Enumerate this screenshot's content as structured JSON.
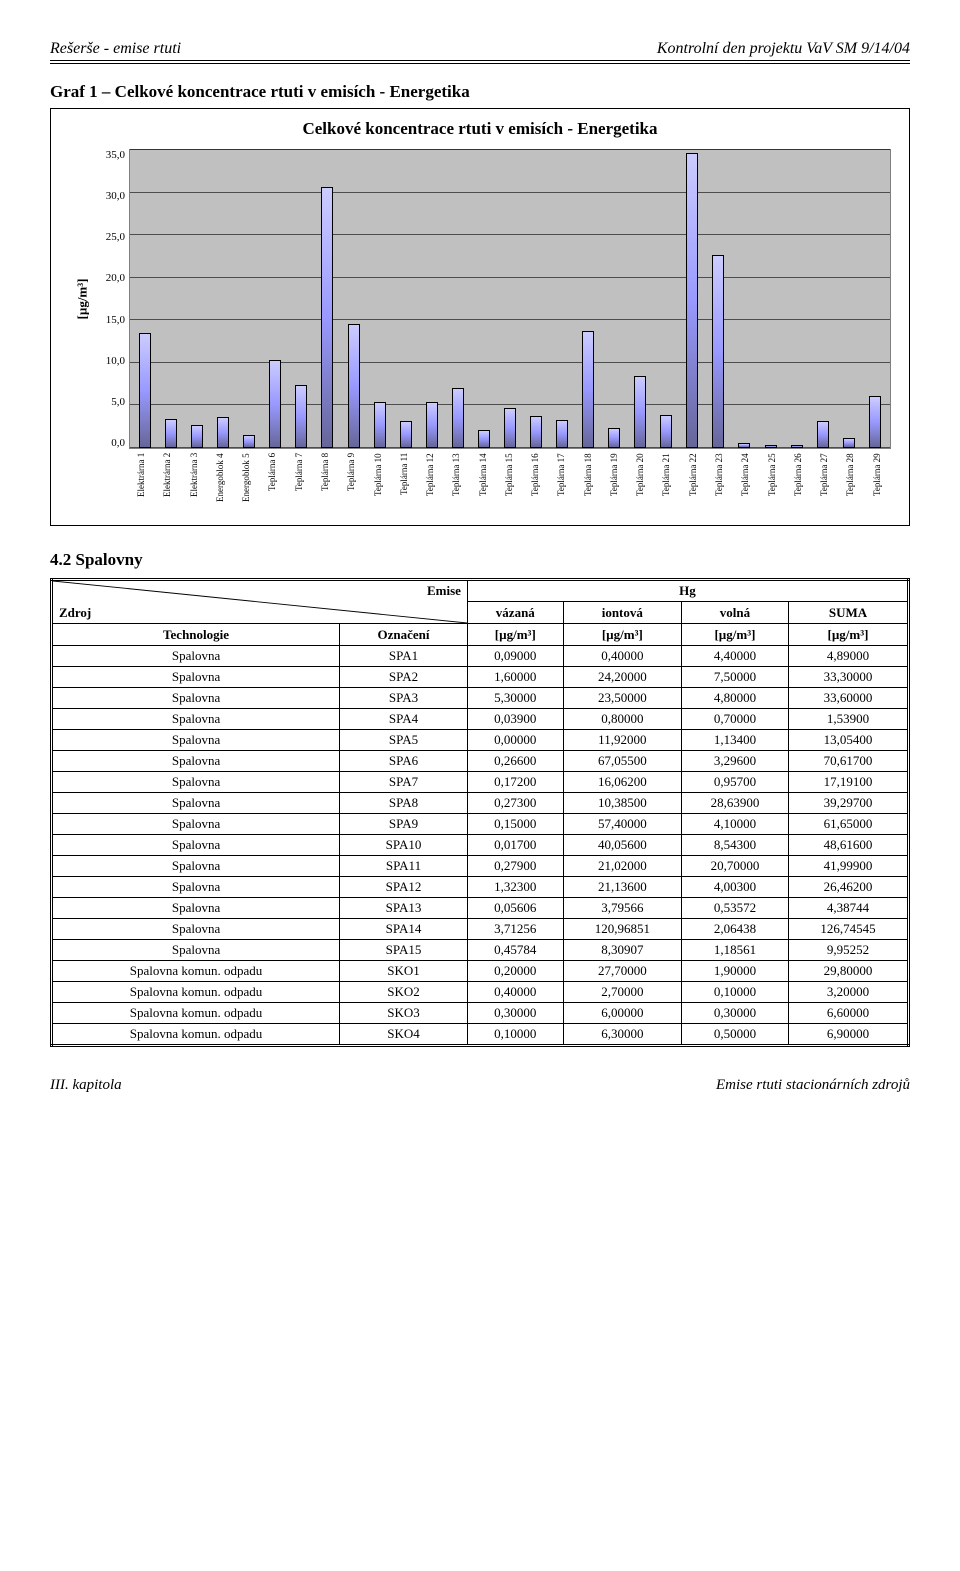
{
  "header": {
    "left": "Rešerše - emise rtuti",
    "right": "Kontrolní den projektu VaV SM 9/14/04"
  },
  "graf_heading": "Graf 1 – Celkové koncentrace rtuti v emisích - Energetika",
  "chart": {
    "type": "bar",
    "title": "Celkové koncentrace rtuti v emisích - Energetika",
    "ylabel": "[µg/m³]",
    "ylim_max": 35,
    "ytick_step": 5,
    "yticks": [
      "0,0",
      "5,0",
      "10,0",
      "15,0",
      "20,0",
      "25,0",
      "30,0",
      "35,0"
    ],
    "background_color": "#c0c0c0",
    "grid_color": "#000000",
    "bar_color_top": "#ccccff",
    "bar_color_mid": "#9999ff",
    "bar_color_bot": "#666699",
    "categories": [
      "Elektrárna 1",
      "Elektrárna 2",
      "Elektrárna 3",
      "Energoblok 4",
      "Energoblok 5",
      "Teplárna 6",
      "Teplárna 7",
      "Teplárna 8",
      "Teplárna 9",
      "Teplárna 10",
      "Teplárna 11",
      "Teplárna 12",
      "Teplárna 13",
      "Teplárna 14",
      "Teplárna 15",
      "Teplárna 16",
      "Teplárna 17",
      "Teplárna 18",
      "Teplárna 19",
      "Teplárna 20",
      "Teplárna 21",
      "Teplárna 22",
      "Teplárna 23",
      "Teplárna 24",
      "Teplárna 25",
      "Teplárna 26",
      "Teplárna 27",
      "Teplárna 28",
      "Teplárna 29"
    ],
    "values": [
      13.5,
      3.4,
      2.7,
      3.6,
      1.5,
      10.3,
      7.4,
      30.7,
      14.6,
      5.4,
      3.2,
      5.4,
      7.0,
      2.1,
      4.7,
      3.8,
      3.3,
      13.8,
      2.4,
      8.4,
      3.9,
      34.7,
      22.7,
      0.6,
      0.3,
      0.4,
      3.2,
      1.2,
      6.1
    ]
  },
  "section_heading": "4.2   Spalovny",
  "table": {
    "diag_top": "Emise",
    "diag_bottom": "Zdroj",
    "hg_label": "Hg",
    "sub_headers": [
      "vázaná",
      "iontová",
      "volná",
      "SUMA"
    ],
    "row2": [
      "Technologie",
      "Označení",
      "[µg/m³]",
      "[µg/m³]",
      "[µg/m³]",
      "[µg/m³]"
    ],
    "rows": [
      [
        "Spalovna",
        "SPA1",
        "0,09000",
        "0,40000",
        "4,40000",
        "4,89000"
      ],
      [
        "Spalovna",
        "SPA2",
        "1,60000",
        "24,20000",
        "7,50000",
        "33,30000"
      ],
      [
        "Spalovna",
        "SPA3",
        "5,30000",
        "23,50000",
        "4,80000",
        "33,60000"
      ],
      [
        "Spalovna",
        "SPA4",
        "0,03900",
        "0,80000",
        "0,70000",
        "1,53900"
      ],
      [
        "Spalovna",
        "SPA5",
        "0,00000",
        "11,92000",
        "1,13400",
        "13,05400"
      ],
      [
        "Spalovna",
        "SPA6",
        "0,26600",
        "67,05500",
        "3,29600",
        "70,61700"
      ],
      [
        "Spalovna",
        "SPA7",
        "0,17200",
        "16,06200",
        "0,95700",
        "17,19100"
      ],
      [
        "Spalovna",
        "SPA8",
        "0,27300",
        "10,38500",
        "28,63900",
        "39,29700"
      ],
      [
        "Spalovna",
        "SPA9",
        "0,15000",
        "57,40000",
        "4,10000",
        "61,65000"
      ],
      [
        "Spalovna",
        "SPA10",
        "0,01700",
        "40,05600",
        "8,54300",
        "48,61600"
      ],
      [
        "Spalovna",
        "SPA11",
        "0,27900",
        "21,02000",
        "20,70000",
        "41,99900"
      ],
      [
        "Spalovna",
        "SPA12",
        "1,32300",
        "21,13600",
        "4,00300",
        "26,46200"
      ],
      [
        "Spalovna",
        "SPA13",
        "0,05606",
        "3,79566",
        "0,53572",
        "4,38744"
      ],
      [
        "Spalovna",
        "SPA14",
        "3,71256",
        "120,96851",
        "2,06438",
        "126,74545"
      ],
      [
        "Spalovna",
        "SPA15",
        "0,45784",
        "8,30907",
        "1,18561",
        "9,95252"
      ],
      [
        "Spalovna komun. odpadu",
        "SKO1",
        "0,20000",
        "27,70000",
        "1,90000",
        "29,80000"
      ],
      [
        "Spalovna komun. odpadu",
        "SKO2",
        "0,40000",
        "2,70000",
        "0,10000",
        "3,20000"
      ],
      [
        "Spalovna komun. odpadu",
        "SKO3",
        "0,30000",
        "6,00000",
        "0,30000",
        "6,60000"
      ],
      [
        "Spalovna komun. odpadu",
        "SKO4",
        "0,10000",
        "6,30000",
        "0,50000",
        "6,90000"
      ]
    ]
  },
  "footer": {
    "left": "III. kapitola",
    "right": "Emise rtuti stacionárních zdrojů"
  }
}
